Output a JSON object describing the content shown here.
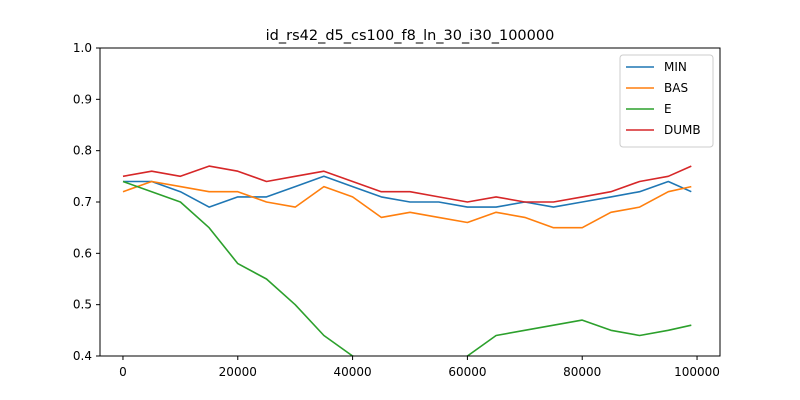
{
  "chart_data": {
    "type": "line",
    "title": "id_rs42_d5_cs100_f8_ln_30_i30_100000",
    "xlabel": "",
    "ylabel": "",
    "xlim": [
      -4000,
      104000
    ],
    "ylim": [
      0.4,
      1.0
    ],
    "x_ticks": [
      {
        "value": 0,
        "label": "0"
      },
      {
        "value": 20000,
        "label": "20000"
      },
      {
        "value": 40000,
        "label": "40000"
      },
      {
        "value": 60000,
        "label": "60000"
      },
      {
        "value": 80000,
        "label": "80000"
      },
      {
        "value": 100000,
        "label": "100000"
      }
    ],
    "y_ticks": [
      {
        "value": 0.4,
        "label": "0.4"
      },
      {
        "value": 0.5,
        "label": "0.5"
      },
      {
        "value": 0.6,
        "label": "0.6"
      },
      {
        "value": 0.7,
        "label": "0.7"
      },
      {
        "value": 0.8,
        "label": "0.8"
      },
      {
        "value": 0.9,
        "label": "0.9"
      },
      {
        "value": 1.0,
        "label": "1.0"
      }
    ],
    "grid": false,
    "legend_position": "top-right",
    "x": [
      0,
      5000,
      10000,
      15000,
      20000,
      25000,
      30000,
      35000,
      40000,
      45000,
      50000,
      55000,
      60000,
      65000,
      70000,
      75000,
      80000,
      85000,
      90000,
      95000,
      99000
    ],
    "series": [
      {
        "name": "MIN",
        "color": "#1f77b4",
        "values": [
          0.74,
          0.74,
          0.72,
          0.69,
          0.71,
          0.71,
          0.73,
          0.75,
          0.73,
          0.71,
          0.7,
          0.7,
          0.69,
          0.69,
          0.7,
          0.69,
          0.7,
          0.71,
          0.72,
          0.74,
          0.72
        ]
      },
      {
        "name": "BAS",
        "color": "#ff7f0e",
        "values": [
          0.72,
          0.74,
          0.73,
          0.72,
          0.72,
          0.7,
          0.69,
          0.73,
          0.71,
          0.67,
          0.68,
          0.67,
          0.66,
          0.68,
          0.67,
          0.65,
          0.65,
          0.68,
          0.69,
          0.72,
          0.73
        ]
      },
      {
        "name": "E",
        "color": "#2ca02c",
        "values": [
          0.74,
          0.72,
          0.7,
          0.65,
          0.58,
          0.55,
          0.5,
          0.44,
          0.4,
          0.39,
          0.39,
          0.37,
          0.4,
          0.44,
          0.45,
          0.46,
          0.47,
          0.45,
          0.44,
          0.45,
          0.46
        ]
      },
      {
        "name": "DUMB",
        "color": "#d62728",
        "values": [
          0.75,
          0.76,
          0.75,
          0.77,
          0.76,
          0.74,
          0.75,
          0.76,
          0.74,
          0.72,
          0.72,
          0.71,
          0.7,
          0.71,
          0.7,
          0.7,
          0.71,
          0.72,
          0.74,
          0.75,
          0.77
        ]
      }
    ]
  }
}
